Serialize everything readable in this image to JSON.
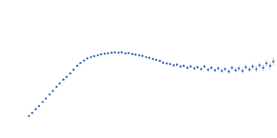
{
  "chart_data": {
    "type": "scatter",
    "color": "#3a66b8",
    "marker": "circle",
    "grid": true,
    "tick_labels": false,
    "xlim": [
      0,
      6
    ],
    "ylim": [
      0,
      2.2
    ],
    "xticks": [
      1.732
    ],
    "yticks": [
      1.104
    ],
    "x": [
      0.63,
      0.7,
      0.78,
      0.85,
      0.93,
      1.0,
      1.08,
      1.15,
      1.23,
      1.3,
      1.38,
      1.45,
      1.53,
      1.6,
      1.68,
      1.75,
      1.83,
      1.9,
      1.98,
      2.05,
      2.13,
      2.2,
      2.28,
      2.35,
      2.43,
      2.5,
      2.58,
      2.65,
      2.73,
      2.8,
      2.88,
      2.95,
      3.03,
      3.1,
      3.18,
      3.25,
      3.33,
      3.4,
      3.48,
      3.55,
      3.63,
      3.7,
      3.78,
      3.85,
      3.93,
      4.0,
      4.08,
      4.15,
      4.23,
      4.3,
      4.38,
      4.45,
      4.53,
      4.6,
      4.68,
      4.75,
      4.83,
      4.9,
      4.98,
      5.05,
      5.13,
      5.2,
      5.28,
      5.35,
      5.43,
      5.5,
      5.58,
      5.65,
      5.73,
      5.8,
      5.88,
      5.95
    ],
    "values": [
      0.352,
      0.4,
      0.46,
      0.51,
      0.575,
      0.63,
      0.695,
      0.75,
      0.815,
      0.87,
      0.93,
      0.975,
      1.03,
      1.09,
      1.15,
      1.195,
      1.235,
      1.27,
      1.29,
      1.305,
      1.32,
      1.335,
      1.345,
      1.35,
      1.36,
      1.365,
      1.36,
      1.365,
      1.35,
      1.355,
      1.34,
      1.33,
      1.32,
      1.31,
      1.29,
      1.28,
      1.26,
      1.245,
      1.23,
      1.2,
      1.19,
      1.18,
      1.16,
      1.17,
      1.14,
      1.15,
      1.12,
      1.14,
      1.11,
      1.13,
      1.1,
      1.14,
      1.09,
      1.12,
      1.08,
      1.11,
      1.07,
      1.1,
      1.06,
      1.12,
      1.08,
      1.11,
      1.07,
      1.13,
      1.09,
      1.14,
      1.1,
      1.16,
      1.12,
      1.19,
      1.15,
      1.22
    ],
    "errors": [
      0.003,
      0.003,
      0.003,
      0.003,
      0.004,
      0.004,
      0.004,
      0.004,
      0.005,
      0.005,
      0.005,
      0.005,
      0.006,
      0.006,
      0.006,
      0.007,
      0.007,
      0.007,
      0.008,
      0.008,
      0.008,
      0.009,
      0.009,
      0.01,
      0.01,
      0.01,
      0.011,
      0.011,
      0.012,
      0.012,
      0.013,
      0.013,
      0.014,
      0.014,
      0.015,
      0.015,
      0.016,
      0.017,
      0.017,
      0.018,
      0.019,
      0.02,
      0.02,
      0.021,
      0.022,
      0.023,
      0.024,
      0.025,
      0.026,
      0.027,
      0.028,
      0.029,
      0.03,
      0.031,
      0.032,
      0.033,
      0.034,
      0.035,
      0.036,
      0.038,
      0.039,
      0.04,
      0.042,
      0.043,
      0.045,
      0.046,
      0.048,
      0.05,
      0.052,
      0.054,
      0.056,
      0.058
    ]
  }
}
